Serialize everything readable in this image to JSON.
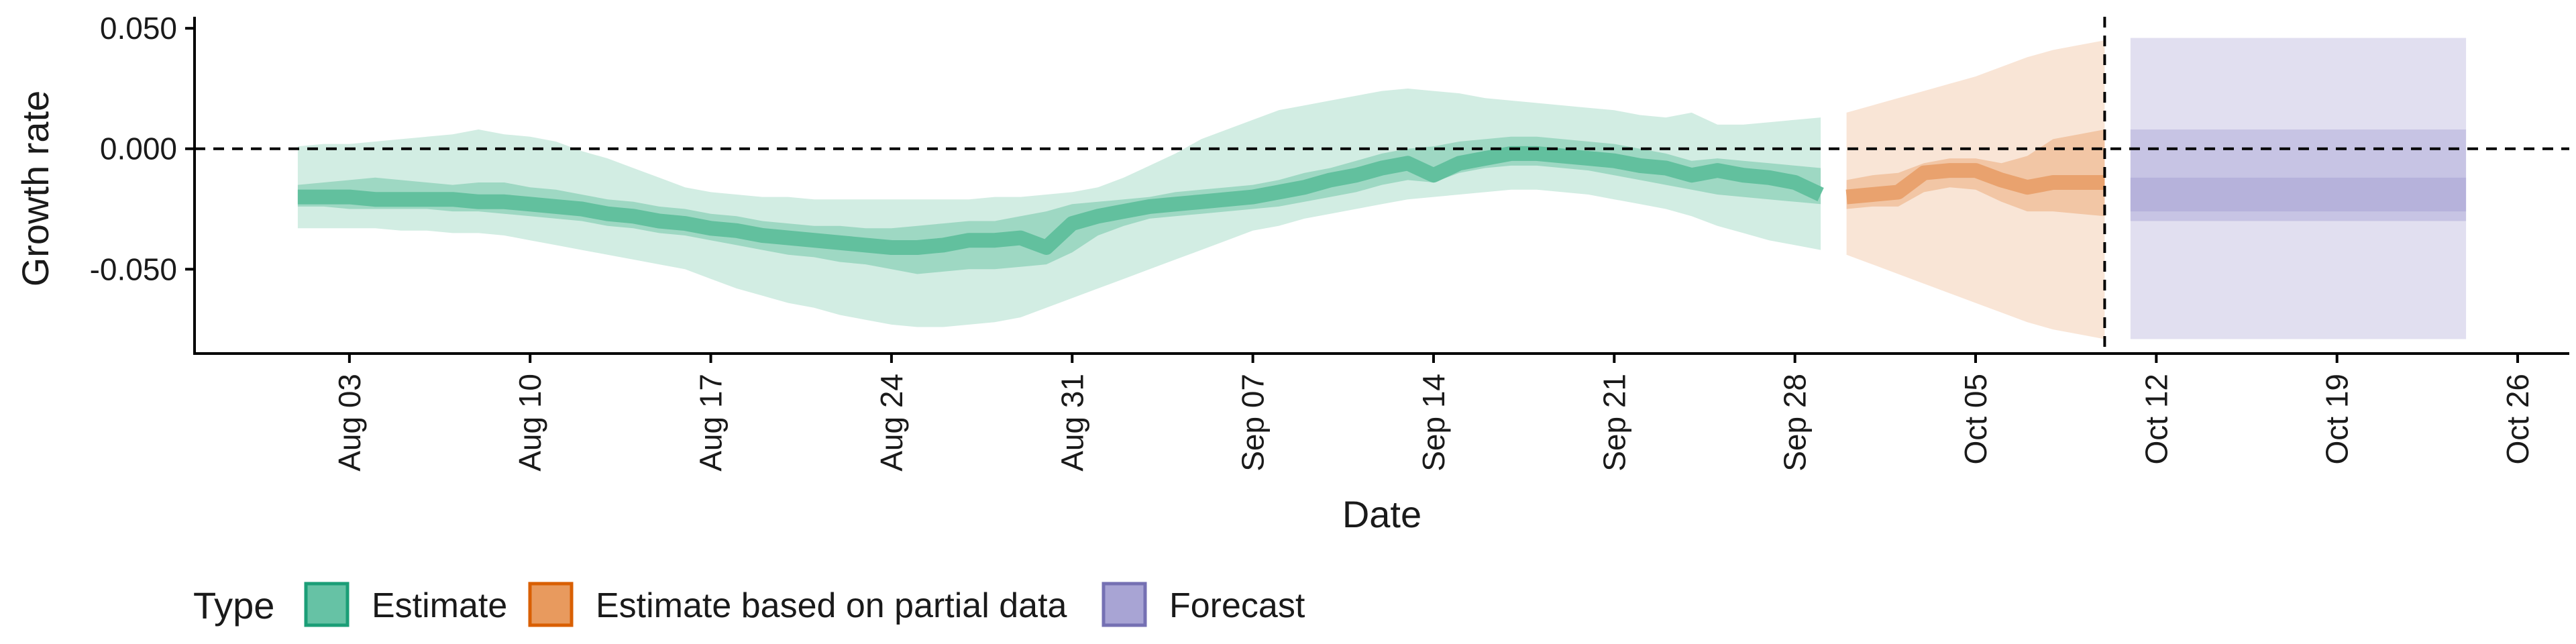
{
  "chart_data": {
    "type": "area",
    "xlabel": "Date",
    "ylabel": "Growth rate",
    "x_ticks": [
      "Aug 03",
      "Aug 10",
      "Aug 17",
      "Aug 24",
      "Aug 31",
      "Sep 07",
      "Sep 14",
      "Sep 21",
      "Sep 28",
      "Oct 05",
      "Oct 12",
      "Oct 19",
      "Oct 26"
    ],
    "y_ticks": [
      "0.050",
      "0.000",
      "-0.050"
    ],
    "y_tick_values": [
      0.05,
      0.0,
      -0.05
    ],
    "xlim": [
      "2020-07-28",
      "2020-10-28"
    ],
    "ylim": [
      -0.085,
      0.052
    ],
    "reference_lines": {
      "horizontal_y": 0.0,
      "vertical_date": "2020-10-10"
    },
    "legend": {
      "title": "Type",
      "position": "bottom-left",
      "entries": [
        {
          "label": "Estimate",
          "fill": "#66c2a5",
          "stroke": "#1b9e77"
        },
        {
          "label": "Estimate based on partial data",
          "fill": "#e89a5e",
          "stroke": "#d95f02"
        },
        {
          "label": "Forecast",
          "fill": "#a8a4d4",
          "stroke": "#7570b3"
        }
      ]
    },
    "series": [
      {
        "name": "Estimate",
        "color": "#5fbf9c",
        "points": [
          {
            "date": "2020-08-01",
            "median": -0.02,
            "lo50": -0.024,
            "hi50": -0.015,
            "lo90": -0.033,
            "hi90": 0.001
          },
          {
            "date": "2020-08-02",
            "median": -0.02,
            "lo50": -0.024,
            "hi50": -0.014,
            "lo90": -0.033,
            "hi90": 0.002
          },
          {
            "date": "2020-08-03",
            "median": -0.02,
            "lo50": -0.025,
            "hi50": -0.013,
            "lo90": -0.033,
            "hi90": 0.002
          },
          {
            "date": "2020-08-04",
            "median": -0.021,
            "lo50": -0.025,
            "hi50": -0.012,
            "lo90": -0.033,
            "hi90": 0.003
          },
          {
            "date": "2020-08-05",
            "median": -0.021,
            "lo50": -0.025,
            "hi50": -0.013,
            "lo90": -0.034,
            "hi90": 0.004
          },
          {
            "date": "2020-08-06",
            "median": -0.021,
            "lo50": -0.025,
            "hi50": -0.014,
            "lo90": -0.034,
            "hi90": 0.005
          },
          {
            "date": "2020-08-07",
            "median": -0.021,
            "lo50": -0.026,
            "hi50": -0.015,
            "lo90": -0.035,
            "hi90": 0.006
          },
          {
            "date": "2020-08-08",
            "median": -0.022,
            "lo50": -0.026,
            "hi50": -0.014,
            "lo90": -0.035,
            "hi90": 0.008
          },
          {
            "date": "2020-08-09",
            "median": -0.022,
            "lo50": -0.027,
            "hi50": -0.014,
            "lo90": -0.036,
            "hi90": 0.006
          },
          {
            "date": "2020-08-10",
            "median": -0.023,
            "lo50": -0.028,
            "hi50": -0.016,
            "lo90": -0.038,
            "hi90": 0.005
          },
          {
            "date": "2020-08-11",
            "median": -0.024,
            "lo50": -0.029,
            "hi50": -0.017,
            "lo90": -0.04,
            "hi90": 0.003
          },
          {
            "date": "2020-08-12",
            "median": -0.025,
            "lo50": -0.03,
            "hi50": -0.019,
            "lo90": -0.042,
            "hi90": -0.001
          },
          {
            "date": "2020-08-13",
            "median": -0.027,
            "lo50": -0.032,
            "hi50": -0.021,
            "lo90": -0.044,
            "hi90": -0.004
          },
          {
            "date": "2020-08-14",
            "median": -0.028,
            "lo50": -0.033,
            "hi50": -0.022,
            "lo90": -0.046,
            "hi90": -0.008
          },
          {
            "date": "2020-08-15",
            "median": -0.03,
            "lo50": -0.035,
            "hi50": -0.024,
            "lo90": -0.048,
            "hi90": -0.012
          },
          {
            "date": "2020-08-16",
            "median": -0.031,
            "lo50": -0.036,
            "hi50": -0.025,
            "lo90": -0.05,
            "hi90": -0.016
          },
          {
            "date": "2020-08-17",
            "median": -0.033,
            "lo50": -0.038,
            "hi50": -0.027,
            "lo90": -0.054,
            "hi90": -0.018
          },
          {
            "date": "2020-08-18",
            "median": -0.034,
            "lo50": -0.04,
            "hi50": -0.028,
            "lo90": -0.058,
            "hi90": -0.019
          },
          {
            "date": "2020-08-19",
            "median": -0.036,
            "lo50": -0.042,
            "hi50": -0.03,
            "lo90": -0.061,
            "hi90": -0.02
          },
          {
            "date": "2020-08-20",
            "median": -0.037,
            "lo50": -0.044,
            "hi50": -0.031,
            "lo90": -0.064,
            "hi90": -0.02
          },
          {
            "date": "2020-08-21",
            "median": -0.038,
            "lo50": -0.045,
            "hi50": -0.032,
            "lo90": -0.066,
            "hi90": -0.021
          },
          {
            "date": "2020-08-22",
            "median": -0.039,
            "lo50": -0.047,
            "hi50": -0.032,
            "lo90": -0.069,
            "hi90": -0.021
          },
          {
            "date": "2020-08-23",
            "median": -0.04,
            "lo50": -0.048,
            "hi50": -0.033,
            "lo90": -0.071,
            "hi90": -0.021
          },
          {
            "date": "2020-08-24",
            "median": -0.041,
            "lo50": -0.05,
            "hi50": -0.033,
            "lo90": -0.073,
            "hi90": -0.021
          },
          {
            "date": "2020-08-25",
            "median": -0.041,
            "lo50": -0.052,
            "hi50": -0.032,
            "lo90": -0.074,
            "hi90": -0.021
          },
          {
            "date": "2020-08-26",
            "median": -0.04,
            "lo50": -0.051,
            "hi50": -0.031,
            "lo90": -0.074,
            "hi90": -0.021
          },
          {
            "date": "2020-08-27",
            "median": -0.038,
            "lo50": -0.05,
            "hi50": -0.03,
            "lo90": -0.073,
            "hi90": -0.021
          },
          {
            "date": "2020-08-28",
            "median": -0.038,
            "lo50": -0.05,
            "hi50": -0.03,
            "lo90": -0.072,
            "hi90": -0.02
          },
          {
            "date": "2020-08-29",
            "median": -0.037,
            "lo50": -0.049,
            "hi50": -0.028,
            "lo90": -0.07,
            "hi90": -0.02
          },
          {
            "date": "2020-08-30",
            "median": -0.041,
            "lo50": -0.048,
            "hi50": -0.026,
            "lo90": -0.066,
            "hi90": -0.019
          },
          {
            "date": "2020-08-31",
            "median": -0.031,
            "lo50": -0.043,
            "hi50": -0.023,
            "lo90": -0.062,
            "hi90": -0.018
          },
          {
            "date": "2020-09-01",
            "median": -0.028,
            "lo50": -0.036,
            "hi50": -0.022,
            "lo90": -0.058,
            "hi90": -0.016
          },
          {
            "date": "2020-09-02",
            "median": -0.026,
            "lo50": -0.032,
            "hi50": -0.021,
            "lo90": -0.054,
            "hi90": -0.012
          },
          {
            "date": "2020-09-03",
            "median": -0.024,
            "lo50": -0.029,
            "hi50": -0.02,
            "lo90": -0.05,
            "hi90": -0.007
          },
          {
            "date": "2020-09-04",
            "median": -0.023,
            "lo50": -0.028,
            "hi50": -0.018,
            "lo90": -0.046,
            "hi90": -0.002
          },
          {
            "date": "2020-09-05",
            "median": -0.022,
            "lo50": -0.027,
            "hi50": -0.017,
            "lo90": -0.042,
            "hi90": 0.004
          },
          {
            "date": "2020-09-06",
            "median": -0.021,
            "lo50": -0.026,
            "hi50": -0.016,
            "lo90": -0.038,
            "hi90": 0.008
          },
          {
            "date": "2020-09-07",
            "median": -0.02,
            "lo50": -0.025,
            "hi50": -0.015,
            "lo90": -0.034,
            "hi90": 0.012
          },
          {
            "date": "2020-09-08",
            "median": -0.018,
            "lo50": -0.024,
            "hi50": -0.013,
            "lo90": -0.032,
            "hi90": 0.016
          },
          {
            "date": "2020-09-09",
            "median": -0.016,
            "lo50": -0.022,
            "hi50": -0.01,
            "lo90": -0.029,
            "hi90": 0.018
          },
          {
            "date": "2020-09-10",
            "median": -0.013,
            "lo50": -0.02,
            "hi50": -0.008,
            "lo90": -0.027,
            "hi90": 0.02
          },
          {
            "date": "2020-09-11",
            "median": -0.011,
            "lo50": -0.018,
            "hi50": -0.005,
            "lo90": -0.025,
            "hi90": 0.022
          },
          {
            "date": "2020-09-12",
            "median": -0.008,
            "lo50": -0.015,
            "hi50": -0.002,
            "lo90": -0.023,
            "hi90": 0.024
          },
          {
            "date": "2020-09-13",
            "median": -0.006,
            "lo50": -0.013,
            "hi50": 0.0,
            "lo90": -0.021,
            "hi90": 0.025
          },
          {
            "date": "2020-09-14",
            "median": -0.011,
            "lo50": -0.014,
            "hi50": 0.001,
            "lo90": -0.02,
            "hi90": 0.024
          },
          {
            "date": "2020-09-15",
            "median": -0.006,
            "lo50": -0.01,
            "hi50": 0.003,
            "lo90": -0.019,
            "hi90": 0.023
          },
          {
            "date": "2020-09-16",
            "median": -0.004,
            "lo50": -0.008,
            "hi50": 0.004,
            "lo90": -0.018,
            "hi90": 0.021
          },
          {
            "date": "2020-09-17",
            "median": -0.002,
            "lo50": -0.007,
            "hi50": 0.005,
            "lo90": -0.017,
            "hi90": 0.02
          },
          {
            "date": "2020-09-18",
            "median": -0.002,
            "lo50": -0.007,
            "hi50": 0.005,
            "lo90": -0.017,
            "hi90": 0.019
          },
          {
            "date": "2020-09-19",
            "median": -0.003,
            "lo50": -0.008,
            "hi50": 0.004,
            "lo90": -0.018,
            "hi90": 0.018
          },
          {
            "date": "2020-09-20",
            "median": -0.004,
            "lo50": -0.009,
            "hi50": 0.003,
            "lo90": -0.019,
            "hi90": 0.017
          },
          {
            "date": "2020-09-21",
            "median": -0.005,
            "lo50": -0.011,
            "hi50": 0.002,
            "lo90": -0.021,
            "hi90": 0.016
          },
          {
            "date": "2020-09-22",
            "median": -0.007,
            "lo50": -0.013,
            "hi50": 0.0,
            "lo90": -0.023,
            "hi90": 0.014
          },
          {
            "date": "2020-09-23",
            "median": -0.008,
            "lo50": -0.015,
            "hi50": -0.002,
            "lo90": -0.025,
            "hi90": 0.013
          },
          {
            "date": "2020-09-24",
            "median": -0.011,
            "lo50": -0.017,
            "hi50": -0.005,
            "lo90": -0.028,
            "hi90": 0.015
          },
          {
            "date": "2020-09-25",
            "median": -0.009,
            "lo50": -0.019,
            "hi50": -0.004,
            "lo90": -0.032,
            "hi90": 0.01
          },
          {
            "date": "2020-09-26",
            "median": -0.011,
            "lo50": -0.02,
            "hi50": -0.005,
            "lo90": -0.035,
            "hi90": 0.01
          },
          {
            "date": "2020-09-27",
            "median": -0.012,
            "lo50": -0.021,
            "hi50": -0.006,
            "lo90": -0.038,
            "hi90": 0.011
          },
          {
            "date": "2020-09-28",
            "median": -0.014,
            "lo50": -0.022,
            "hi50": -0.007,
            "lo90": -0.04,
            "hi90": 0.012
          },
          {
            "date": "2020-09-29",
            "median": -0.019,
            "lo50": -0.023,
            "hi50": -0.008,
            "lo90": -0.042,
            "hi90": 0.013
          }
        ]
      },
      {
        "name": "Estimate based on partial data",
        "color": "#e8a06a",
        "points": [
          {
            "date": "2020-09-30",
            "median": -0.02,
            "lo50": -0.025,
            "hi50": -0.013,
            "lo90": -0.044,
            "hi90": 0.015
          },
          {
            "date": "2020-10-01",
            "median": -0.019,
            "lo50": -0.024,
            "hi50": -0.011,
            "lo90": -0.048,
            "hi90": 0.018
          },
          {
            "date": "2020-10-02",
            "median": -0.018,
            "lo50": -0.024,
            "hi50": -0.01,
            "lo90": -0.052,
            "hi90": 0.021
          },
          {
            "date": "2020-10-03",
            "median": -0.01,
            "lo50": -0.018,
            "hi50": -0.006,
            "lo90": -0.056,
            "hi90": 0.024
          },
          {
            "date": "2020-10-04",
            "median": -0.009,
            "lo50": -0.016,
            "hi50": -0.004,
            "lo90": -0.06,
            "hi90": 0.027
          },
          {
            "date": "2020-10-05",
            "median": -0.009,
            "lo50": -0.017,
            "hi50": -0.004,
            "lo90": -0.064,
            "hi90": 0.03
          },
          {
            "date": "2020-10-06",
            "median": -0.013,
            "lo50": -0.022,
            "hi50": -0.006,
            "lo90": -0.068,
            "hi90": 0.034
          },
          {
            "date": "2020-10-07",
            "median": -0.016,
            "lo50": -0.026,
            "hi50": -0.003,
            "lo90": -0.072,
            "hi90": 0.038
          },
          {
            "date": "2020-10-08",
            "median": -0.014,
            "lo50": -0.026,
            "hi50": 0.004,
            "lo90": -0.075,
            "hi90": 0.041
          },
          {
            "date": "2020-10-09",
            "median": -0.014,
            "lo50": -0.027,
            "hi50": 0.006,
            "lo90": -0.077,
            "hi90": 0.043
          },
          {
            "date": "2020-10-10",
            "median": -0.014,
            "lo50": -0.028,
            "hi50": 0.008,
            "lo90": -0.079,
            "hi90": 0.045
          }
        ]
      },
      {
        "name": "Forecast",
        "color": "#a8a4d4",
        "start": "2020-10-11",
        "end": "2020-10-24",
        "median": -0.018,
        "lo50": -0.03,
        "hi50": 0.008,
        "lo90": -0.079,
        "hi90": 0.046,
        "lo_inner": -0.026,
        "hi_inner": -0.012
      }
    ]
  }
}
